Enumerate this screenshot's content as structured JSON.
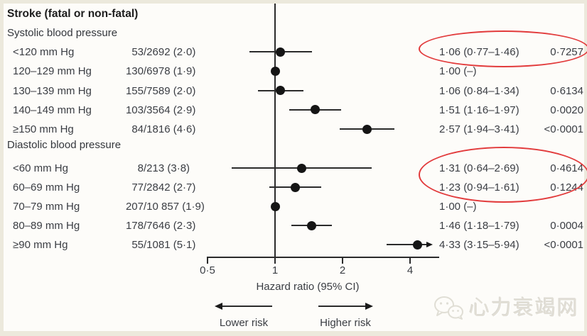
{
  "colors": {
    "text": "#3a3d43",
    "line": "#2b2b2b",
    "dot": "#151515",
    "annotation_red": "#e23b3c",
    "background": "#fdfcf9",
    "border": "#ece9dc"
  },
  "watermark": {
    "text": "心力衰竭网",
    "icon": "wechat-bubbles-icon"
  },
  "chart_data": {
    "type": "forest",
    "title": "Stroke (fatal or non-fatal)",
    "xlabel": "Hazard ratio (95% CI)",
    "x_scale": "log2",
    "x_axis_range": [
      0.5,
      5.4
    ],
    "ref_line": 1,
    "x_ticks": [
      {
        "v": 0.5,
        "label": "0·5"
      },
      {
        "v": 1,
        "label": "1"
      },
      {
        "v": 2,
        "label": "2"
      },
      {
        "v": 4,
        "label": "4"
      }
    ],
    "lower_label": "Lower risk",
    "higher_label": "Higher risk",
    "groups": [
      {
        "name": "Systolic blood pressure",
        "rows": [
          {
            "label": "<120 mm Hg",
            "events": "53/2692 (2·0)",
            "hr": 1.06,
            "lo": 0.77,
            "hi": 1.46,
            "hr_text": "1·06 (0·77–1·46)",
            "p": "0·7257",
            "ref": false,
            "clipped": false,
            "circled": true
          },
          {
            "label": "120–129 mm Hg",
            "events": "130/6978 (1·9)",
            "hr": 1.0,
            "lo": null,
            "hi": null,
            "hr_text": "1·00 (–)",
            "p": "",
            "ref": true,
            "clipped": false,
            "circled": false
          },
          {
            "label": "130–139 mm Hg",
            "events": "155/7589 (2·0)",
            "hr": 1.06,
            "lo": 0.84,
            "hi": 1.34,
            "hr_text": "1·06 (0·84–1·34)",
            "p": "0·6134",
            "ref": false,
            "clipped": false,
            "circled": false
          },
          {
            "label": "140–149 mm Hg",
            "events": "103/3564 (2·9)",
            "hr": 1.51,
            "lo": 1.16,
            "hi": 1.97,
            "hr_text": "1·51 (1·16–1·97)",
            "p": "0·0020",
            "ref": false,
            "clipped": false,
            "circled": false
          },
          {
            "label": "≥150 mm Hg",
            "events": "84/1816 (4·6)",
            "hr": 2.57,
            "lo": 1.94,
            "hi": 3.41,
            "hr_text": "2·57 (1·94–3·41)",
            "p": "<0·0001",
            "ref": false,
            "clipped": false,
            "circled": false
          }
        ]
      },
      {
        "name": "Diastolic blood pressure",
        "rows": [
          {
            "label": "<60 mm Hg",
            "events": "8/213 (3·8)",
            "hr": 1.31,
            "lo": 0.64,
            "hi": 2.69,
            "hr_text": "1·31 (0·64–2·69)",
            "p": "0·4614",
            "ref": false,
            "clipped": false,
            "circled": true
          },
          {
            "label": "60–69 mm Hg",
            "events": "77/2842 (2·7)",
            "hr": 1.23,
            "lo": 0.94,
            "hi": 1.61,
            "hr_text": "1·23 (0·94–1·61)",
            "p": "0·1244",
            "ref": false,
            "clipped": false,
            "circled": true
          },
          {
            "label": "70–79 mm Hg",
            "events": "207/10 857 (1·9)",
            "hr": 1.0,
            "lo": null,
            "hi": null,
            "hr_text": "1·00 (–)",
            "p": "",
            "ref": true,
            "clipped": false,
            "circled": false
          },
          {
            "label": "80–89 mm Hg",
            "events": "178/7646 (2·3)",
            "hr": 1.46,
            "lo": 1.18,
            "hi": 1.79,
            "hr_text": "1·46 (1·18–1·79)",
            "p": "0·0004",
            "ref": false,
            "clipped": false,
            "circled": false
          },
          {
            "label": "≥90 mm Hg",
            "events": "55/1081 (5·1)",
            "hr": 4.33,
            "lo": 3.15,
            "hi": 5.94,
            "hr_text": "4·33 (3·15–5·94)",
            "p": "<0·0001",
            "ref": false,
            "clipped": true,
            "circled": false
          }
        ]
      }
    ]
  }
}
